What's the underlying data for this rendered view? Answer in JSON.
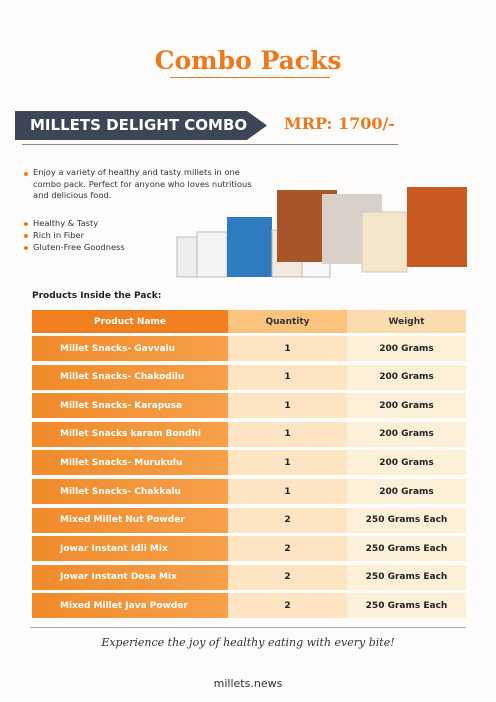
{
  "header": {
    "title": "Combo Packs",
    "combo_name": "MILLETS DELIGHT COMBO",
    "price": "MRP: 1700/-"
  },
  "description": "Enjoy a variety of healthy and tasty millets in one combo pack. Perfect for anyone who loves nutritious and delicious food.",
  "features": [
    "Healthy & Tasty",
    "Rich in Fiber",
    "Gluten-Free Goodness"
  ],
  "table": {
    "caption": "Products Inside the Pack:",
    "columns": [
      "Product Name",
      "Quantity",
      "Weight"
    ],
    "rows": [
      [
        "Millet Snacks- Gavvalu",
        "1",
        "200 Grams"
      ],
      [
        "Millet Snacks- Chakodilu",
        "1",
        "200 Grams"
      ],
      [
        "Millet Snacks- Karapusa",
        "1",
        "200 Grams"
      ],
      [
        "Millet Snacks karam Bondhi",
        "1",
        "200 Grams"
      ],
      [
        "Millet Snacks- Murukulu",
        "1",
        "200 Grams"
      ],
      [
        "Millet Snacks- Chakkalu",
        "1",
        "200 Grams"
      ],
      [
        "Mixed Millet Nut Powder",
        "2",
        "250 Grams Each"
      ],
      [
        "Jowar Instant Idli Mix",
        "2",
        "250 Grams Each"
      ],
      [
        "Jowar Instant Dosa Mix",
        "2",
        "250 Grams Each"
      ],
      [
        "Mixed Millet Java Powder",
        "2",
        "250 Grams Each"
      ]
    ]
  },
  "tagline": "Experience the joy of healthy eating with every bite!",
  "footer": "millets.news"
}
